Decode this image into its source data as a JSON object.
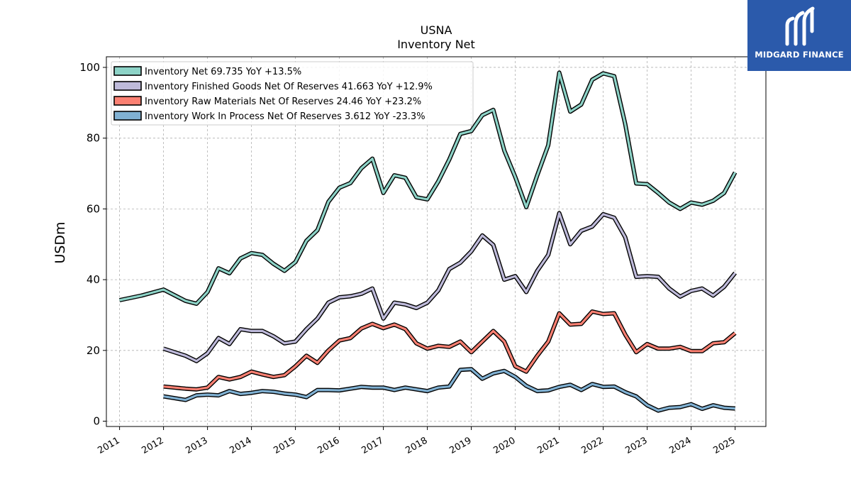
{
  "logo": {
    "text": "MIDGARD FINANCE",
    "bg": "#2b5aab"
  },
  "chart_data": {
    "type": "line",
    "title": "USNA",
    "subtitle": "Inventory Net",
    "ylabel": "USDm",
    "xlabel": "",
    "ylim": [
      -1.5,
      103
    ],
    "xlim": [
      2010.7,
      2025.7
    ],
    "yticks": [
      0,
      20,
      40,
      60,
      80,
      100
    ],
    "xticks": [
      "2011",
      "2012",
      "2013",
      "2014",
      "2015",
      "2016",
      "2017",
      "2018",
      "2019",
      "2020",
      "2021",
      "2022",
      "2023",
      "2024",
      "2025"
    ],
    "grid": true,
    "legend_position": "upper-left",
    "series": [
      {
        "name": "Inventory Net  69.735 YoY +13.5%",
        "color": "#8dd3c7",
        "points": [
          [
            2011.0,
            34.2
          ],
          [
            2011.5,
            35.5
          ],
          [
            2012.0,
            37.2
          ],
          [
            2012.5,
            34.0
          ],
          [
            2012.75,
            33.2
          ],
          [
            2013.0,
            36.5
          ],
          [
            2013.25,
            43.2
          ],
          [
            2013.5,
            41.8
          ],
          [
            2013.75,
            46.0
          ],
          [
            2014.0,
            47.5
          ],
          [
            2014.25,
            47.0
          ],
          [
            2014.5,
            44.5
          ],
          [
            2014.75,
            42.5
          ],
          [
            2015.0,
            45.0
          ],
          [
            2015.25,
            51.0
          ],
          [
            2015.5,
            54.0
          ],
          [
            2015.75,
            62.0
          ],
          [
            2016.0,
            66.0
          ],
          [
            2016.25,
            67.3
          ],
          [
            2016.5,
            71.5
          ],
          [
            2016.75,
            74.2
          ],
          [
            2017.0,
            64.5
          ],
          [
            2017.25,
            69.5
          ],
          [
            2017.5,
            68.8
          ],
          [
            2017.75,
            63.3
          ],
          [
            2018.0,
            62.7
          ],
          [
            2018.25,
            67.8
          ],
          [
            2018.5,
            74.0
          ],
          [
            2018.75,
            81.2
          ],
          [
            2019.0,
            82.0
          ],
          [
            2019.25,
            86.5
          ],
          [
            2019.5,
            88.0
          ],
          [
            2019.75,
            76.5
          ],
          [
            2020.0,
            69.0
          ],
          [
            2020.25,
            60.5
          ],
          [
            2020.5,
            69.5
          ],
          [
            2020.75,
            78.0
          ],
          [
            2021.0,
            98.5
          ],
          [
            2021.25,
            87.5
          ],
          [
            2021.5,
            89.5
          ],
          [
            2021.75,
            96.5
          ],
          [
            2022.0,
            98.3
          ],
          [
            2022.25,
            97.5
          ],
          [
            2022.5,
            84.0
          ],
          [
            2022.75,
            67.2
          ],
          [
            2023.0,
            67.0
          ],
          [
            2023.25,
            64.5
          ],
          [
            2023.5,
            61.8
          ],
          [
            2023.75,
            60.0
          ],
          [
            2024.0,
            61.8
          ],
          [
            2024.25,
            61.2
          ],
          [
            2024.5,
            62.3
          ],
          [
            2024.75,
            64.5
          ],
          [
            2025.0,
            70.3
          ]
        ]
      },
      {
        "name": "Inventory Finished Goods Net Of Reserves  41.663 YoY +12.9%",
        "color": "#bebada",
        "points": [
          [
            2012.0,
            20.5
          ],
          [
            2012.25,
            19.5
          ],
          [
            2012.5,
            18.5
          ],
          [
            2012.75,
            17.0
          ],
          [
            2013.0,
            19.2
          ],
          [
            2013.25,
            23.5
          ],
          [
            2013.5,
            21.8
          ],
          [
            2013.75,
            26.0
          ],
          [
            2014.0,
            25.5
          ],
          [
            2014.25,
            25.5
          ],
          [
            2014.5,
            24.0
          ],
          [
            2014.75,
            22.0
          ],
          [
            2015.0,
            22.5
          ],
          [
            2015.25,
            26.0
          ],
          [
            2015.5,
            29.0
          ],
          [
            2015.75,
            33.5
          ],
          [
            2016.0,
            35.0
          ],
          [
            2016.25,
            35.3
          ],
          [
            2016.5,
            36.0
          ],
          [
            2016.75,
            37.5
          ],
          [
            2017.0,
            29.0
          ],
          [
            2017.25,
            33.5
          ],
          [
            2017.5,
            33.0
          ],
          [
            2017.75,
            32.0
          ],
          [
            2018.0,
            33.5
          ],
          [
            2018.25,
            37.0
          ],
          [
            2018.5,
            43.0
          ],
          [
            2018.75,
            44.8
          ],
          [
            2019.0,
            48.0
          ],
          [
            2019.25,
            52.5
          ],
          [
            2019.5,
            49.8
          ],
          [
            2019.75,
            40.0
          ],
          [
            2020.0,
            41.0
          ],
          [
            2020.25,
            36.5
          ],
          [
            2020.5,
            42.5
          ],
          [
            2020.75,
            47.0
          ],
          [
            2021.0,
            58.8
          ],
          [
            2021.25,
            50.0
          ],
          [
            2021.5,
            53.8
          ],
          [
            2021.75,
            55.0
          ],
          [
            2022.0,
            58.5
          ],
          [
            2022.25,
            57.5
          ],
          [
            2022.5,
            52.0
          ],
          [
            2022.75,
            40.8
          ],
          [
            2023.0,
            41.0
          ],
          [
            2023.25,
            40.8
          ],
          [
            2023.5,
            37.5
          ],
          [
            2023.75,
            35.2
          ],
          [
            2024.0,
            36.8
          ],
          [
            2024.25,
            37.5
          ],
          [
            2024.5,
            35.5
          ],
          [
            2024.75,
            38.0
          ],
          [
            2025.0,
            41.9
          ]
        ]
      },
      {
        "name": "Inventory Raw Materials Net Of Reserves  24.46 YoY +23.2%",
        "color": "#fb8072",
        "points": [
          [
            2012.0,
            9.8
          ],
          [
            2012.25,
            9.5
          ],
          [
            2012.5,
            9.2
          ],
          [
            2012.75,
            9.0
          ],
          [
            2013.0,
            9.5
          ],
          [
            2013.25,
            12.5
          ],
          [
            2013.5,
            11.8
          ],
          [
            2013.75,
            12.5
          ],
          [
            2014.0,
            14.0
          ],
          [
            2014.25,
            13.2
          ],
          [
            2014.5,
            12.5
          ],
          [
            2014.75,
            13.0
          ],
          [
            2015.0,
            15.5
          ],
          [
            2015.25,
            18.5
          ],
          [
            2015.5,
            16.5
          ],
          [
            2015.75,
            20.0
          ],
          [
            2016.0,
            22.8
          ],
          [
            2016.25,
            23.5
          ],
          [
            2016.5,
            26.2
          ],
          [
            2016.75,
            27.5
          ],
          [
            2017.0,
            26.3
          ],
          [
            2017.25,
            27.3
          ],
          [
            2017.5,
            26.0
          ],
          [
            2017.75,
            22.0
          ],
          [
            2018.0,
            20.5
          ],
          [
            2018.25,
            21.3
          ],
          [
            2018.5,
            21.0
          ],
          [
            2018.75,
            22.5
          ],
          [
            2019.0,
            19.5
          ],
          [
            2019.25,
            22.5
          ],
          [
            2019.5,
            25.5
          ],
          [
            2019.75,
            22.5
          ],
          [
            2020.0,
            15.5
          ],
          [
            2020.25,
            14.0
          ],
          [
            2020.5,
            18.5
          ],
          [
            2020.75,
            22.5
          ],
          [
            2021.0,
            30.5
          ],
          [
            2021.25,
            27.3
          ],
          [
            2021.5,
            27.5
          ],
          [
            2021.75,
            31.0
          ],
          [
            2022.0,
            30.3
          ],
          [
            2022.25,
            30.5
          ],
          [
            2022.5,
            24.5
          ],
          [
            2022.75,
            19.5
          ],
          [
            2023.0,
            21.8
          ],
          [
            2023.25,
            20.5
          ],
          [
            2023.5,
            20.5
          ],
          [
            2023.75,
            21.0
          ],
          [
            2024.0,
            19.8
          ],
          [
            2024.25,
            19.8
          ],
          [
            2024.5,
            22.0
          ],
          [
            2024.75,
            22.3
          ],
          [
            2025.0,
            24.9
          ]
        ]
      },
      {
        "name": "Inventory Work In Process Net Of Reserves  3.612 YoY -23.3%",
        "color": "#80b1d3",
        "points": [
          [
            2012.0,
            7.0
          ],
          [
            2012.25,
            6.5
          ],
          [
            2012.5,
            6.0
          ],
          [
            2012.75,
            7.3
          ],
          [
            2013.0,
            7.5
          ],
          [
            2013.25,
            7.3
          ],
          [
            2013.5,
            8.5
          ],
          [
            2013.75,
            7.7
          ],
          [
            2014.0,
            8.0
          ],
          [
            2014.25,
            8.5
          ],
          [
            2014.5,
            8.3
          ],
          [
            2014.75,
            7.8
          ],
          [
            2015.0,
            7.5
          ],
          [
            2015.25,
            6.8
          ],
          [
            2015.5,
            8.8
          ],
          [
            2015.75,
            8.8
          ],
          [
            2016.0,
            8.7
          ],
          [
            2016.25,
            9.2
          ],
          [
            2016.5,
            9.7
          ],
          [
            2016.75,
            9.5
          ],
          [
            2017.0,
            9.5
          ],
          [
            2017.25,
            8.8
          ],
          [
            2017.5,
            9.5
          ],
          [
            2017.75,
            9.0
          ],
          [
            2018.0,
            8.5
          ],
          [
            2018.25,
            9.5
          ],
          [
            2018.5,
            9.8
          ],
          [
            2018.75,
            14.5
          ],
          [
            2019.0,
            14.7
          ],
          [
            2019.25,
            12.0
          ],
          [
            2019.5,
            13.5
          ],
          [
            2019.75,
            14.2
          ],
          [
            2020.0,
            12.5
          ],
          [
            2020.25,
            10.0
          ],
          [
            2020.5,
            8.5
          ],
          [
            2020.75,
            8.7
          ],
          [
            2021.0,
            9.7
          ],
          [
            2021.25,
            10.3
          ],
          [
            2021.5,
            8.8
          ],
          [
            2021.75,
            10.5
          ],
          [
            2022.0,
            9.7
          ],
          [
            2022.25,
            9.8
          ],
          [
            2022.5,
            8.2
          ],
          [
            2022.75,
            7.0
          ],
          [
            2023.0,
            4.5
          ],
          [
            2023.25,
            3.0
          ],
          [
            2023.5,
            3.8
          ],
          [
            2023.75,
            4.0
          ],
          [
            2024.0,
            4.8
          ],
          [
            2024.25,
            3.5
          ],
          [
            2024.5,
            4.5
          ],
          [
            2024.75,
            3.8
          ],
          [
            2025.0,
            3.6
          ]
        ]
      }
    ]
  }
}
